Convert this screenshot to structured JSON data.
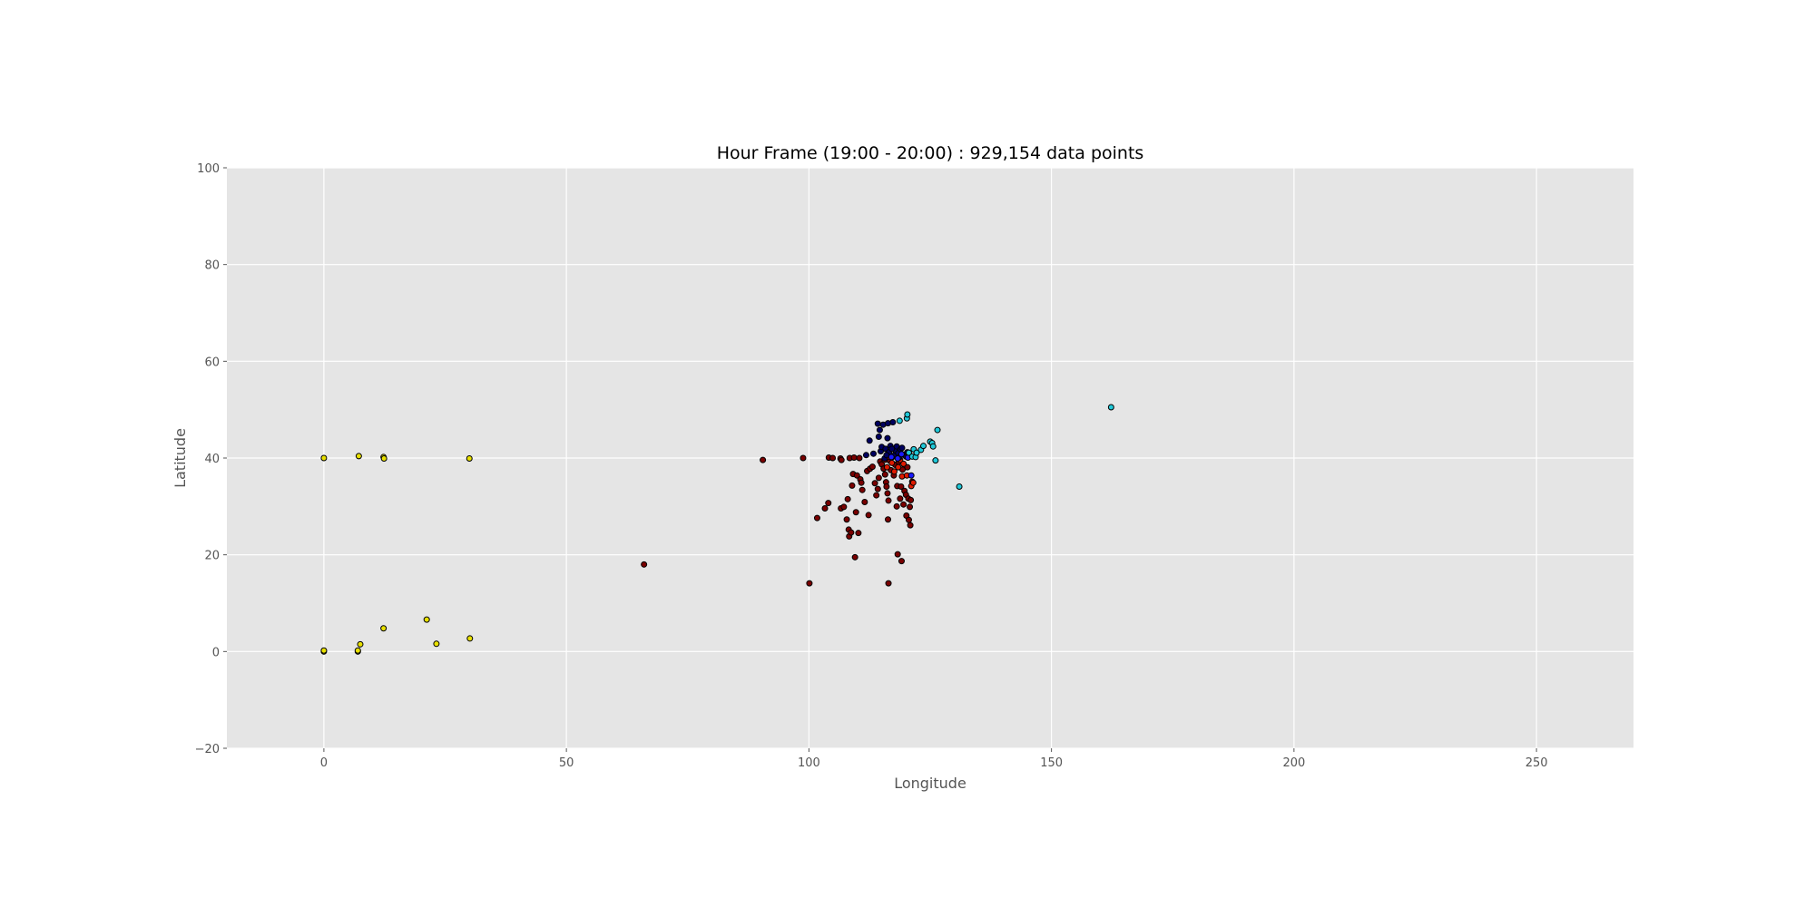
{
  "chart_data": {
    "type": "scatter",
    "title": "Hour Frame (19:00 - 20:00) : 929,154 data points",
    "xlabel": "Longitude",
    "ylabel": "Latitude",
    "xlim": [
      -20,
      270
    ],
    "ylim": [
      -20,
      100
    ],
    "xticks": [
      0,
      50,
      100,
      150,
      200,
      250
    ],
    "yticks": [
      -20,
      0,
      20,
      40,
      60,
      80,
      100
    ],
    "grid": true,
    "legend": "none",
    "colors": {
      "background": "#e5e5e5",
      "grid": "#ffffff",
      "marker_edge": "#000000"
    },
    "series": [
      {
        "color": "#e8e000",
        "points": [
          [
            0,
            40
          ],
          [
            7.2,
            40.4
          ],
          [
            12.3,
            40.2
          ],
          [
            12.4,
            39.9
          ],
          [
            30,
            39.9
          ],
          [
            0,
            0
          ],
          [
            0,
            0.2
          ],
          [
            7,
            0
          ],
          [
            7,
            0.2
          ],
          [
            7.5,
            1.5
          ],
          [
            12.3,
            4.8
          ],
          [
            21.2,
            6.6
          ],
          [
            23.2,
            1.6
          ],
          [
            30.1,
            2.7
          ]
        ]
      },
      {
        "color": "#7a0000",
        "points": [
          [
            66,
            18
          ],
          [
            90.5,
            39.6
          ],
          [
            98.8,
            40
          ],
          [
            100.1,
            14.1
          ],
          [
            101.7,
            27.6
          ],
          [
            103.3,
            29.6
          ],
          [
            104,
            30.7
          ],
          [
            104.1,
            40.1
          ],
          [
            104.9,
            40
          ],
          [
            106.5,
            39.9
          ],
          [
            106.7,
            39.6
          ],
          [
            106.6,
            29.6
          ],
          [
            107.2,
            29.9
          ],
          [
            107.8,
            27.3
          ],
          [
            108,
            31.5
          ],
          [
            108.2,
            25.2
          ],
          [
            108.4,
            40
          ],
          [
            108.3,
            23.8
          ],
          [
            108.7,
            24.6
          ],
          [
            108.9,
            34.3
          ],
          [
            109.1,
            36.7
          ],
          [
            109.3,
            40.1
          ],
          [
            109.5,
            19.5
          ],
          [
            109.7,
            28.8
          ],
          [
            109.9,
            36.4
          ],
          [
            110.2,
            24.5
          ],
          [
            110.4,
            40
          ],
          [
            110.6,
            35.6
          ],
          [
            110.8,
            34.9
          ],
          [
            111,
            33.4
          ],
          [
            111.5,
            30.9
          ],
          [
            112,
            37.3
          ],
          [
            112.3,
            28.2
          ],
          [
            112.6,
            37.8
          ],
          [
            113.1,
            38.2
          ],
          [
            113.6,
            34.8
          ],
          [
            113.9,
            32.3
          ],
          [
            114.2,
            33.6
          ],
          [
            114.4,
            35.9
          ],
          [
            114.7,
            39.3
          ],
          [
            115,
            38.7
          ],
          [
            115.4,
            37.8
          ],
          [
            115.7,
            36.6
          ],
          [
            115.9,
            35
          ],
          [
            116,
            34.1
          ],
          [
            116.2,
            32.7
          ],
          [
            116.4,
            31.2
          ],
          [
            116.3,
            27.3
          ],
          [
            116.4,
            14.1
          ],
          [
            116.6,
            39.5
          ],
          [
            116.9,
            37.5
          ],
          [
            117.2,
            40.2
          ],
          [
            117.5,
            36.4
          ],
          [
            117.8,
            38.6
          ],
          [
            118.1,
            30
          ],
          [
            118.2,
            34.2
          ],
          [
            118.3,
            20.1
          ],
          [
            118.5,
            39.2
          ],
          [
            118.8,
            31.6
          ],
          [
            119,
            34.1
          ],
          [
            119.1,
            18.7
          ],
          [
            119.3,
            37.6
          ],
          [
            119.5,
            30.4
          ],
          [
            119.7,
            33.2
          ],
          [
            120,
            32.4
          ],
          [
            120.1,
            28.1
          ],
          [
            120.3,
            38.1
          ],
          [
            120.5,
            31.6
          ],
          [
            120.6,
            27.2
          ],
          [
            120.8,
            29.9
          ],
          [
            120.9,
            26.1
          ],
          [
            121,
            31.3
          ],
          [
            121.3,
            35.1
          ]
        ]
      },
      {
        "color": "#e01a00",
        "points": [
          [
            115.6,
            39.6
          ],
          [
            116.1,
            38.1
          ],
          [
            116.5,
            40.3
          ],
          [
            117.1,
            39
          ],
          [
            117.6,
            37.2
          ],
          [
            118.4,
            38.1
          ],
          [
            118.8,
            39.6
          ],
          [
            119.2,
            36.2
          ],
          [
            120.2,
            36.4
          ],
          [
            121.1,
            34.2
          ],
          [
            121.5,
            34.9
          ],
          [
            119.5,
            38.8
          ]
        ]
      },
      {
        "color": "#000060",
        "points": [
          [
            111.8,
            40.6
          ],
          [
            112.5,
            43.6
          ],
          [
            113.3,
            40.9
          ],
          [
            114.2,
            47.1
          ],
          [
            114.4,
            44.4
          ],
          [
            114.6,
            45.8
          ],
          [
            114.8,
            41.4
          ],
          [
            115,
            42.3
          ],
          [
            115.3,
            46.9
          ],
          [
            115.6,
            39.9
          ],
          [
            115.8,
            41.9
          ],
          [
            116.2,
            44.1
          ],
          [
            116.3,
            47.2
          ],
          [
            116.5,
            41.2
          ],
          [
            116.8,
            42.5
          ],
          [
            117.3,
            47.4
          ],
          [
            117.5,
            40.5
          ],
          [
            117.8,
            41.6
          ],
          [
            118.1,
            42.4
          ],
          [
            118.4,
            41
          ],
          [
            118.6,
            40.1
          ],
          [
            118.9,
            41.8
          ],
          [
            119.2,
            42.1
          ],
          [
            119.5,
            40.7
          ],
          [
            120,
            40.3
          ],
          [
            120.3,
            41.2
          ],
          [
            116,
            40.6
          ],
          [
            117.1,
            41.9
          ]
        ]
      },
      {
        "color": "#1a1aff",
        "points": [
          [
            117,
            40.2
          ],
          [
            118.3,
            39.9
          ],
          [
            119.1,
            40.8
          ],
          [
            120.4,
            40.1
          ],
          [
            121.1,
            36.4
          ]
        ]
      },
      {
        "color": "#20c8d8",
        "points": [
          [
            118.7,
            47.7
          ],
          [
            120.2,
            48.2
          ],
          [
            120.3,
            49
          ],
          [
            120.6,
            41.1
          ],
          [
            121.3,
            40.3
          ],
          [
            121.6,
            41.8
          ],
          [
            122,
            40.2
          ],
          [
            122.2,
            41.1
          ],
          [
            123.1,
            41.7
          ],
          [
            123.6,
            42.5
          ],
          [
            125,
            43.4
          ],
          [
            125.4,
            43.1
          ],
          [
            125.6,
            42.4
          ],
          [
            126.1,
            39.5
          ],
          [
            126.5,
            45.8
          ],
          [
            131,
            34.1
          ],
          [
            162.3,
            50.5
          ]
        ]
      }
    ]
  }
}
